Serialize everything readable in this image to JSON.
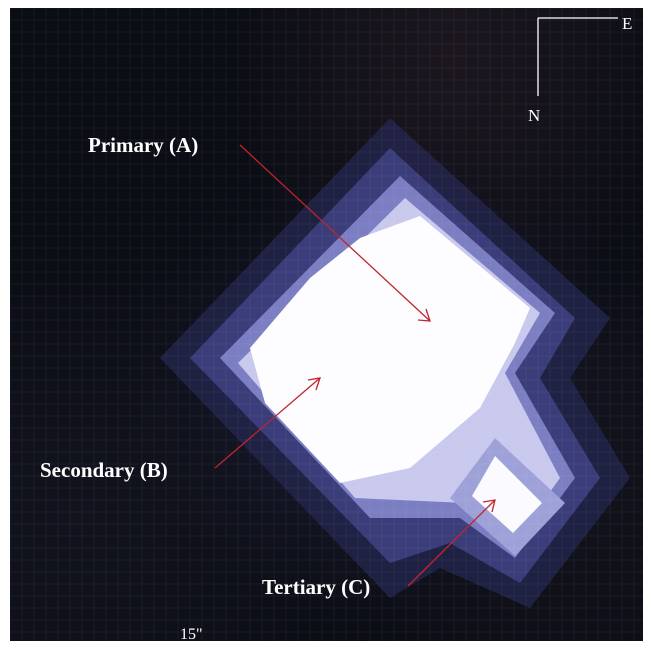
{
  "labels": {
    "primary": "Primary (A)",
    "secondary": "Secondary (B)",
    "tertiary": "Tertiary (C)"
  },
  "compass": {
    "east": "E",
    "north": "N"
  },
  "scale_bar": {
    "label": "15\""
  },
  "colors": {
    "background": "#0b0d15",
    "star_core": "#fdfcff",
    "star_halo": "#6f74b8",
    "arrow": "#c0242c",
    "text": "#ffffff"
  }
}
